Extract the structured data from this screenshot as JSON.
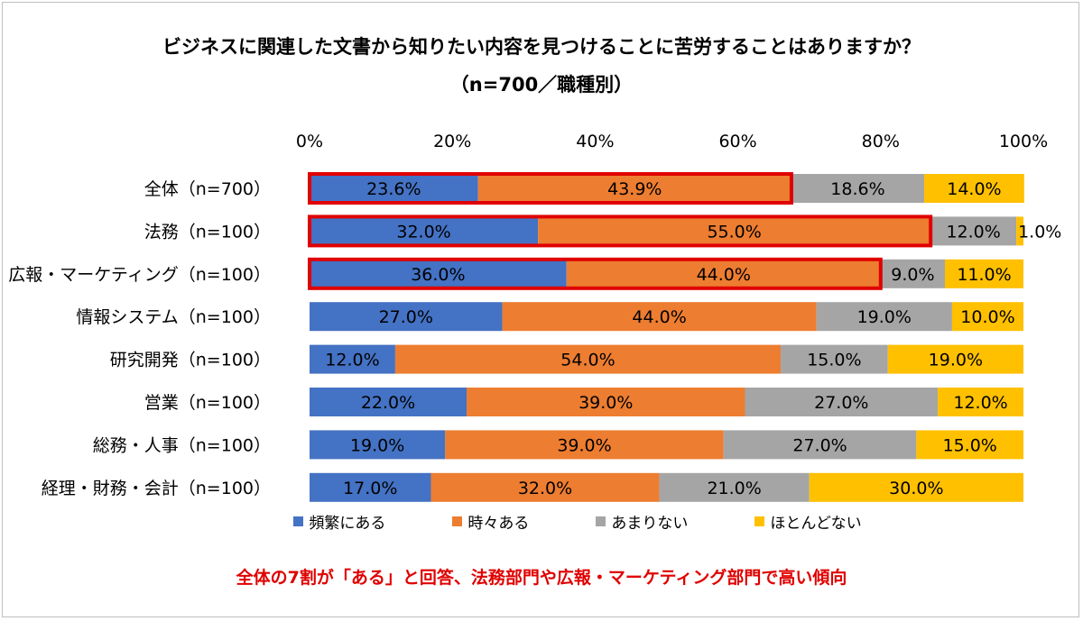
{
  "colors": {
    "frequent": "#4472c4",
    "sometimes": "#ed7d31",
    "rarely": "#a5a5a5",
    "almost_never": "#ffc000",
    "highlight": "#e00000"
  },
  "chart_data": {
    "type": "bar",
    "orientation": "horizontal-stacked-100",
    "title": "ビジネスに関連した文書から知りたい内容を見つけることに苦労することはありますか？",
    "subtitle": "（n=700／職種別）",
    "xlim": [
      0,
      100
    ],
    "x_ticks": [
      "0%",
      "20%",
      "40%",
      "60%",
      "80%",
      "100%"
    ],
    "grid": false,
    "legend_position": "bottom",
    "categories": [
      "全体（n=700）",
      "法務（n=100）",
      "広報・マーケティング（n=100）",
      "情報システム（n=100）",
      "研究開発（n=100）",
      "営業（n=100）",
      "総務・人事（n=100）",
      "経理・財務・会計（n=100）"
    ],
    "series": [
      {
        "name": "頻繁にある",
        "values": [
          23.6,
          32.0,
          36.0,
          27.0,
          12.0,
          22.0,
          19.0,
          17.0
        ],
        "labels": [
          "23.6%",
          "32.0%",
          "36.0%",
          "27.0%",
          "12.0%",
          "22.0%",
          "19.0%",
          "17.0%"
        ]
      },
      {
        "name": "時々ある",
        "values": [
          43.9,
          55.0,
          44.0,
          44.0,
          54.0,
          39.0,
          39.0,
          32.0
        ],
        "labels": [
          "43.9%",
          "55.0%",
          "44.0%",
          "44.0%",
          "54.0%",
          "39.0%",
          "39.0%",
          "32.0%"
        ]
      },
      {
        "name": "あまりない",
        "values": [
          18.6,
          12.0,
          9.0,
          19.0,
          15.0,
          27.0,
          27.0,
          21.0
        ],
        "labels": [
          "18.6%",
          "12.0%",
          "9.0%",
          "19.0%",
          "15.0%",
          "27.0%",
          "27.0%",
          "21.0%"
        ]
      },
      {
        "name": "ほとんどない",
        "values": [
          14.0,
          1.0,
          11.0,
          10.0,
          19.0,
          12.0,
          15.0,
          30.0
        ],
        "labels": [
          "14.0%",
          "1.0%",
          "11.0%",
          "10.0%",
          "19.0%",
          "12.0%",
          "15.0%",
          "30.0%"
        ]
      }
    ],
    "highlighted_categories": [
      0,
      1,
      2
    ],
    "annotation": "全体の7割が「ある」と回答、法務部門や広報・マーケティング部門で高い傾向"
  }
}
